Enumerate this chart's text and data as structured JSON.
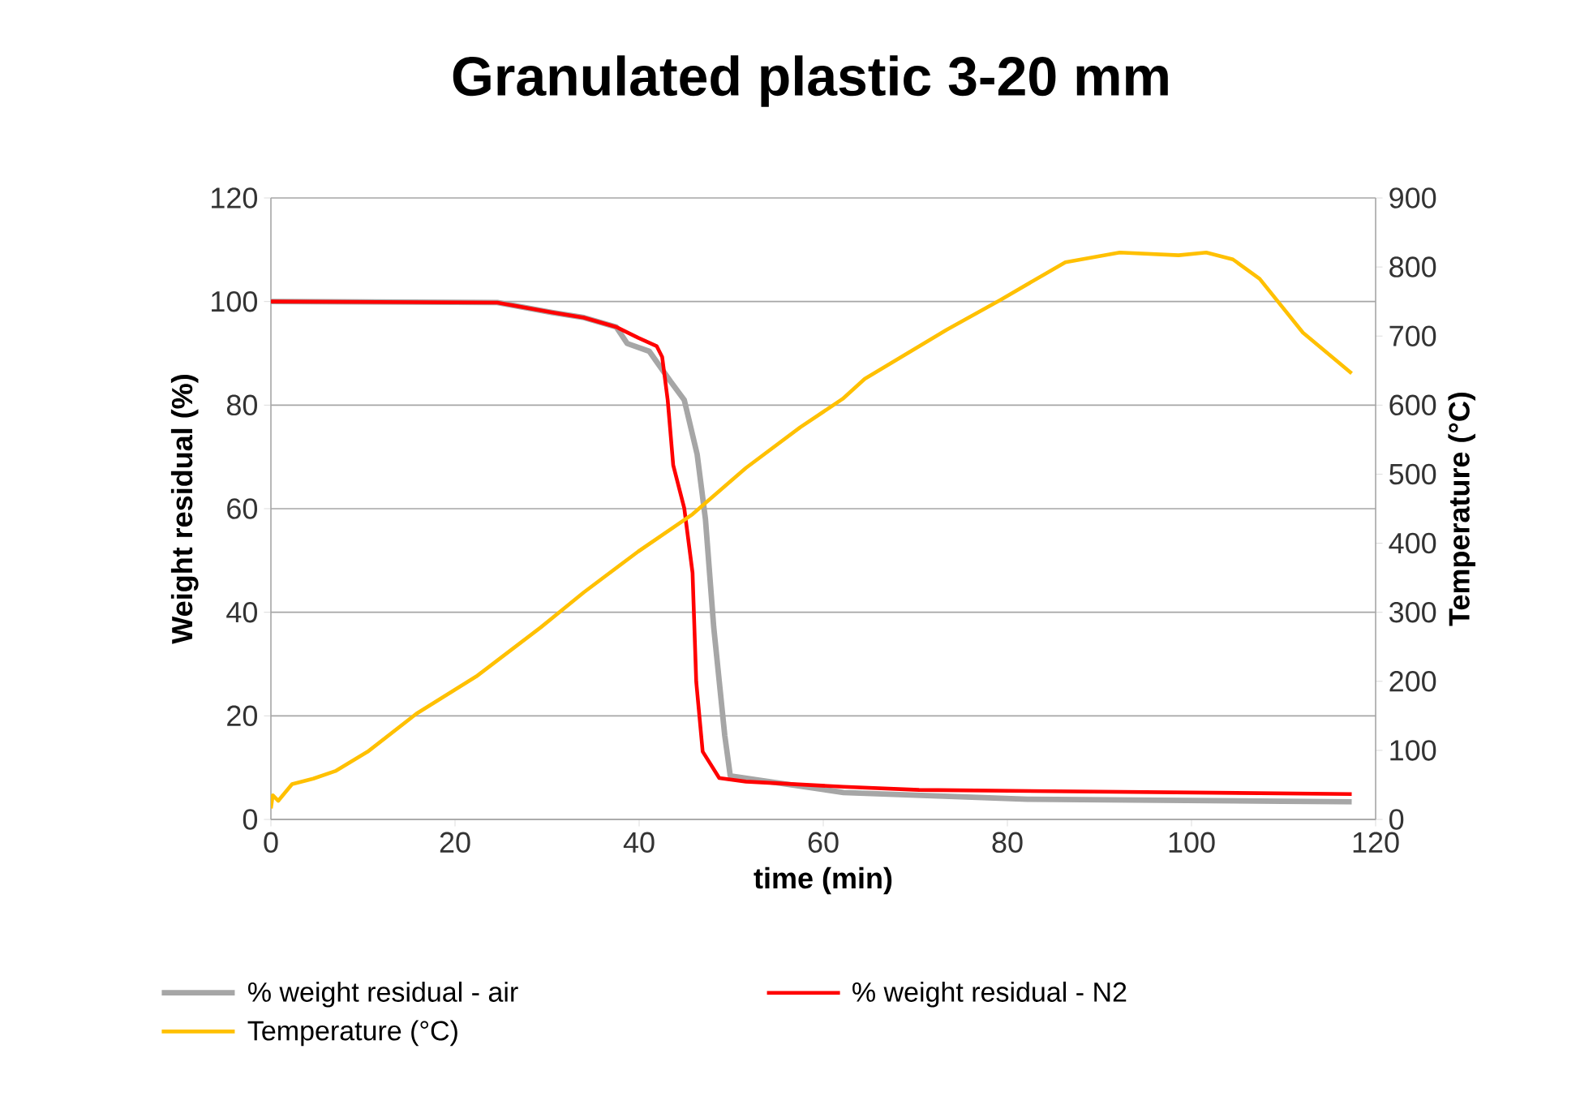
{
  "chart_data": {
    "type": "line",
    "title": "Granulated plastic 3-20 mm",
    "xlabel": "time (min)",
    "ylabel": "Weight residual (%)",
    "y2label": "Temperature (°C)",
    "xlim": [
      0,
      120
    ],
    "xticks": [
      0,
      20,
      40,
      60,
      80,
      100,
      120
    ],
    "ylim": [
      0,
      120
    ],
    "yticks": [
      0,
      20,
      40,
      60,
      80,
      100,
      120
    ],
    "y2lim": [
      0,
      900
    ],
    "y2ticks": [
      0,
      100,
      200,
      300,
      400,
      500,
      600,
      700,
      800,
      900
    ],
    "grid": "y",
    "legend": "bottom",
    "marker": "none",
    "line_style": "solid",
    "series": [
      {
        "name": "% weight residual - air",
        "color": "#a6a6a6",
        "x": [
          0,
          24.6,
          30.5,
          34,
          37.5,
          38.7,
          41.1,
          43.4,
          44.9,
          46.3,
          47.2,
          48.1,
          49.3,
          49.9,
          62.2,
          82.2,
          117.4
        ],
        "values": [
          100,
          99.8,
          97.9,
          96.9,
          95.1,
          91.9,
          90.4,
          84.6,
          81,
          70.5,
          58,
          37.1,
          16.2,
          8.4,
          5.2,
          3.9,
          3.4
        ]
      },
      {
        "name": "% weight residual - N2",
        "color": "#ff0000",
        "x": [
          0,
          24.6,
          30.5,
          34,
          37.5,
          39.9,
          41.9,
          42.5,
          43.1,
          43.7,
          44.9,
          45.8,
          46.2,
          46.9,
          48.7,
          51.6,
          62.2,
          70.4,
          117.4
        ],
        "values": [
          100,
          99.8,
          97.9,
          96.9,
          95.1,
          93,
          91.4,
          89.3,
          81,
          68.4,
          60.1,
          47.6,
          26.6,
          13.1,
          8,
          7.3,
          6.3,
          5.7,
          4.9
        ]
      },
      {
        "name": "Temperature (°C)",
        "color": "#ffc000",
        "axis": "y2",
        "x": [
          0,
          0.2,
          0.8,
          2.3,
          4.6,
          7,
          10.5,
          15.8,
          22.3,
          29.3,
          34,
          39.9,
          45.8,
          51.6,
          57.5,
          62.1,
          64.5,
          73.4,
          79.2,
          86.3,
          92.2,
          98.6,
          101.6,
          104.5,
          107.4,
          112.1,
          117.4
        ],
        "values": [
          16,
          35,
          27,
          51,
          59,
          70,
          98,
          153,
          207,
          278,
          329,
          388,
          442,
          509,
          568,
          609,
          638,
          709,
          752,
          807,
          821,
          817,
          821,
          811,
          783,
          705,
          646
        ]
      }
    ]
  }
}
